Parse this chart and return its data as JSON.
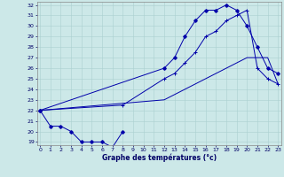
{
  "xlabel": "Graphe des températures (°c)",
  "bg_color": "#cce8e8",
  "grid_color": "#aad0d0",
  "line_color": "#0000aa",
  "ylim": [
    18.7,
    32.3
  ],
  "xlim": [
    -0.3,
    23.3
  ],
  "yticks": [
    19,
    20,
    21,
    22,
    23,
    24,
    25,
    26,
    27,
    28,
    29,
    30,
    31,
    32
  ],
  "xticks": [
    0,
    1,
    2,
    3,
    4,
    5,
    6,
    7,
    8,
    9,
    10,
    11,
    12,
    13,
    14,
    15,
    16,
    17,
    18,
    19,
    20,
    21,
    22,
    23
  ],
  "hours": [
    0,
    1,
    2,
    3,
    4,
    5,
    6,
    7,
    8,
    9,
    10,
    11,
    12,
    13,
    14,
    15,
    16,
    17,
    18,
    19,
    20,
    21,
    22,
    23
  ],
  "line1": [
    22,
    null,
    null,
    null,
    null,
    null,
    null,
    null,
    null,
    null,
    null,
    null,
    26,
    27,
    29,
    30.5,
    31.5,
    31.5,
    32,
    31.5,
    30,
    28,
    26,
    25.5
  ],
  "line2": [
    22,
    20.5,
    20.5,
    20,
    19,
    19,
    19,
    18.5,
    20,
    null,
    null,
    null,
    null,
    null,
    null,
    null,
    null,
    null,
    null,
    null,
    null,
    null,
    null,
    null
  ],
  "line3": [
    22,
    null,
    null,
    null,
    null,
    null,
    null,
    null,
    22.5,
    null,
    null,
    null,
    25,
    25.5,
    26.5,
    27.5,
    29,
    29.5,
    30.5,
    31,
    31.5,
    26,
    25,
    24.5
  ],
  "line4": [
    22,
    null,
    null,
    null,
    null,
    null,
    null,
    null,
    null,
    null,
    null,
    null,
    23,
    23.5,
    24,
    24.5,
    25,
    25.5,
    26,
    26.5,
    27,
    27,
    27,
    24.5
  ]
}
